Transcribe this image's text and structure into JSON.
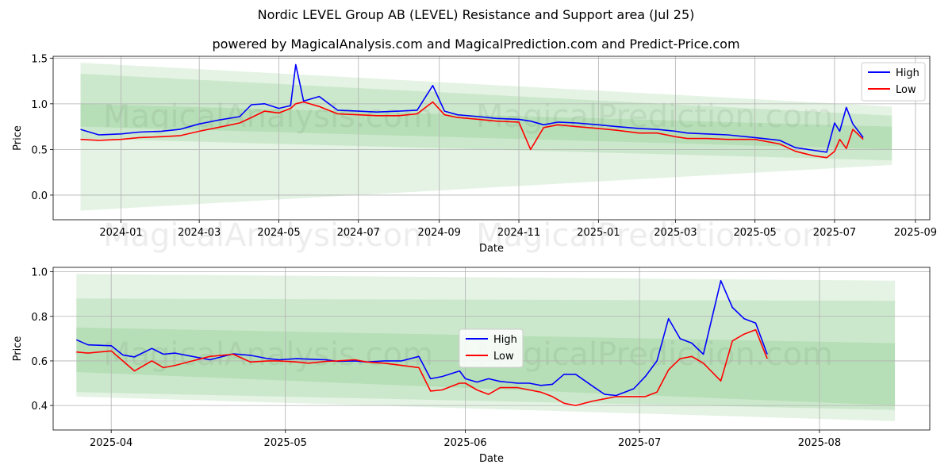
{
  "title": "Nordic LEVEL Group AB (LEVEL) Resistance and Support area (Jul 25)",
  "subtitle": "powered by MagicalAnalysis.com and MagicalPrediction.com and Predict-Price.com",
  "watermarks": [
    "MagicalAnalysis.com",
    "MagicalPrediction.com"
  ],
  "colors": {
    "high": "#0000ff",
    "low": "#ff0000",
    "band": "#2ca02c",
    "grid": "#b0b0b0"
  },
  "chart_data": [
    {
      "type": "line",
      "xlabel": "Date",
      "ylabel": "Price",
      "xlim": [
        "2023-11-10",
        "2025-09-12"
      ],
      "ylim": [
        -0.27,
        1.52
      ],
      "x_ticks": [
        "2024-01",
        "2024-03",
        "2024-05",
        "2024-07",
        "2024-09",
        "2024-11",
        "2025-01",
        "2025-03",
        "2025-05",
        "2025-07",
        "2025-09"
      ],
      "y_ticks": [
        "1.5",
        "1.0",
        "0.5",
        "0.0"
      ],
      "y_tick_values": [
        1.5,
        1.0,
        0.5,
        0.0
      ],
      "legend": [
        "High",
        "Low"
      ],
      "legend_position": "top-right",
      "bands": [
        {
          "start": "2023-12-01",
          "end": "2025-08-14",
          "top": [
            1.45,
            0.97
          ],
          "bottom": [
            -0.17,
            0.33
          ]
        },
        {
          "start": "2023-12-01",
          "end": "2025-08-14",
          "top": [
            1.33,
            0.87
          ],
          "bottom": [
            0.62,
            0.38
          ]
        },
        {
          "start": "2023-12-01",
          "end": "2025-08-14",
          "top": [
            1.0,
            0.75
          ],
          "bottom": [
            0.75,
            0.5
          ]
        }
      ],
      "x": [
        "2023-12-01",
        "2023-12-15",
        "2024-01-01",
        "2024-01-15",
        "2024-02-01",
        "2024-02-15",
        "2024-03-01",
        "2024-03-15",
        "2024-04-01",
        "2024-04-10",
        "2024-04-20",
        "2024-05-01",
        "2024-05-10",
        "2024-05-14",
        "2024-05-20",
        "2024-06-01",
        "2024-06-15",
        "2024-07-01",
        "2024-07-15",
        "2024-08-01",
        "2024-08-15",
        "2024-08-27",
        "2024-09-05",
        "2024-09-15",
        "2024-10-01",
        "2024-10-15",
        "2024-11-01",
        "2024-11-10",
        "2024-11-20",
        "2024-12-01",
        "2024-12-15",
        "2025-01-01",
        "2025-01-15",
        "2025-02-01",
        "2025-02-15",
        "2025-03-01",
        "2025-03-10",
        "2025-03-25",
        "2025-04-10",
        "2025-05-01",
        "2025-05-20",
        "2025-06-01",
        "2025-06-15",
        "2025-06-25",
        "2025-07-01",
        "2025-07-05",
        "2025-07-10",
        "2025-07-15",
        "2025-07-23"
      ],
      "series": [
        {
          "name": "High",
          "values": [
            0.72,
            0.66,
            0.67,
            0.69,
            0.7,
            0.72,
            0.78,
            0.82,
            0.86,
            0.99,
            1.0,
            0.95,
            0.98,
            1.43,
            1.03,
            1.08,
            0.93,
            0.92,
            0.91,
            0.92,
            0.93,
            1.2,
            0.92,
            0.88,
            0.86,
            0.84,
            0.83,
            0.81,
            0.77,
            0.8,
            0.79,
            0.77,
            0.75,
            0.73,
            0.72,
            0.7,
            0.68,
            0.67,
            0.66,
            0.63,
            0.6,
            0.52,
            0.49,
            0.47,
            0.79,
            0.7,
            0.96,
            0.78,
            0.63
          ]
        },
        {
          "name": "Low",
          "values": [
            0.61,
            0.6,
            0.61,
            0.63,
            0.64,
            0.65,
            0.7,
            0.74,
            0.79,
            0.85,
            0.92,
            0.9,
            0.95,
            1.0,
            1.02,
            0.97,
            0.89,
            0.88,
            0.87,
            0.87,
            0.89,
            1.02,
            0.88,
            0.85,
            0.83,
            0.81,
            0.8,
            0.5,
            0.74,
            0.77,
            0.75,
            0.73,
            0.71,
            0.68,
            0.68,
            0.64,
            0.62,
            0.62,
            0.61,
            0.61,
            0.56,
            0.48,
            0.43,
            0.41,
            0.48,
            0.61,
            0.51,
            0.72,
            0.61
          ]
        }
      ]
    },
    {
      "type": "line",
      "xlabel": "Date",
      "ylabel": "Price",
      "xlim": [
        "2025-03-22",
        "2025-08-20"
      ],
      "ylim": [
        0.29,
        1.02
      ],
      "x_ticks": [
        "2025-04",
        "2025-05",
        "2025-06",
        "2025-07",
        "2025-08"
      ],
      "y_ticks": [
        "1.0",
        "0.8",
        "0.6",
        "0.4"
      ],
      "y_tick_values": [
        1.0,
        0.8,
        0.6,
        0.4
      ],
      "legend": [
        "High",
        "Low"
      ],
      "legend_position": "center",
      "bands": [
        {
          "start": "2025-03-26",
          "end": "2025-08-14",
          "top": [
            0.99,
            0.96
          ],
          "bottom": [
            0.44,
            0.33
          ]
        },
        {
          "start": "2025-03-26",
          "end": "2025-08-14",
          "top": [
            0.88,
            0.87
          ],
          "bottom": [
            0.46,
            0.38
          ]
        },
        {
          "start": "2025-03-26",
          "end": "2025-08-14",
          "top": [
            0.75,
            0.68
          ],
          "bottom": [
            0.55,
            0.4
          ]
        }
      ],
      "x": [
        "2025-03-26",
        "2025-03-28",
        "2025-04-01",
        "2025-04-03",
        "2025-04-05",
        "2025-04-08",
        "2025-04-10",
        "2025-04-12",
        "2025-04-15",
        "2025-04-18",
        "2025-04-22",
        "2025-04-25",
        "2025-04-28",
        "2025-04-30",
        "2025-05-03",
        "2025-05-05",
        "2025-05-08",
        "2025-05-10",
        "2025-05-13",
        "2025-05-15",
        "2025-05-18",
        "2025-05-21",
        "2025-05-24",
        "2025-05-26",
        "2025-05-28",
        "2025-05-31",
        "2025-06-01",
        "2025-06-03",
        "2025-06-05",
        "2025-06-07",
        "2025-06-10",
        "2025-06-12",
        "2025-06-14",
        "2025-06-16",
        "2025-06-18",
        "2025-06-20",
        "2025-06-23",
        "2025-06-25",
        "2025-06-27",
        "2025-06-30",
        "2025-07-02",
        "2025-07-04",
        "2025-07-06",
        "2025-07-08",
        "2025-07-10",
        "2025-07-12",
        "2025-07-15",
        "2025-07-17",
        "2025-07-19",
        "2025-07-21",
        "2025-07-23"
      ],
      "series": [
        {
          "name": "High",
          "values": [
            0.695,
            0.672,
            0.668,
            0.627,
            0.618,
            0.656,
            0.63,
            0.635,
            0.62,
            0.605,
            0.632,
            0.625,
            0.61,
            0.605,
            0.61,
            0.608,
            0.605,
            0.598,
            0.6,
            0.595,
            0.6,
            0.6,
            0.62,
            0.52,
            0.53,
            0.555,
            0.52,
            0.505,
            0.52,
            0.508,
            0.5,
            0.5,
            0.49,
            0.495,
            0.54,
            0.54,
            0.485,
            0.45,
            0.445,
            0.475,
            0.53,
            0.6,
            0.79,
            0.7,
            0.68,
            0.63,
            0.96,
            0.84,
            0.79,
            0.77,
            0.63
          ]
        },
        {
          "name": "Low",
          "values": [
            0.64,
            0.635,
            0.645,
            0.6,
            0.555,
            0.6,
            0.57,
            0.58,
            0.6,
            0.62,
            0.63,
            0.595,
            0.6,
            0.6,
            0.595,
            0.59,
            0.598,
            0.6,
            0.605,
            0.595,
            0.59,
            0.58,
            0.57,
            0.465,
            0.47,
            0.5,
            0.5,
            0.47,
            0.45,
            0.48,
            0.48,
            0.47,
            0.46,
            0.44,
            0.41,
            0.4,
            0.42,
            0.43,
            0.44,
            0.44,
            0.44,
            0.46,
            0.56,
            0.61,
            0.62,
            0.59,
            0.51,
            0.69,
            0.72,
            0.74,
            0.61
          ]
        }
      ]
    }
  ]
}
